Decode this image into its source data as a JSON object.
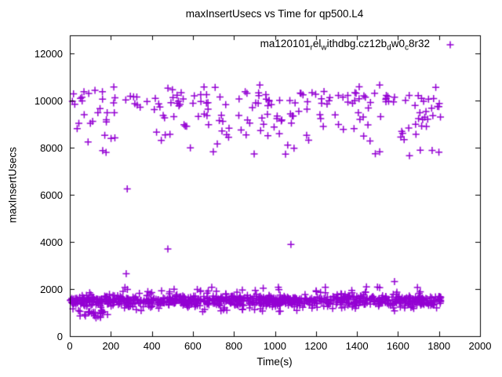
{
  "chart_data": {
    "type": "scatter",
    "title": "maxInsertUsecs vs Time for qp500.L4",
    "xlabel": "Time(s)",
    "ylabel": "maxInsertUsecs",
    "xlim": [
      0,
      2000
    ],
    "ylim": [
      0,
      12766
    ],
    "xticks": [
      0,
      200,
      400,
      600,
      800,
      1000,
      1200,
      1400,
      1600,
      1800,
      2000
    ],
    "yticks": [
      0,
      2000,
      4000,
      6000,
      8000,
      10000,
      12000
    ],
    "grid": false,
    "marker": "plus",
    "series_color": "#9400D3",
    "axis_color": "#000000",
    "legend": {
      "position": "top-right-inside",
      "label_plain": "ma120101_rel_withdbg.cz12b_dw0_c8r32",
      "label_segments": [
        {
          "text": "ma120101",
          "sub": false
        },
        {
          "text": "r",
          "sub": true
        },
        {
          "text": "el",
          "sub": false
        },
        {
          "text": "w",
          "sub": true
        },
        {
          "text": "ithdbg.cz12b",
          "sub": false
        },
        {
          "text": "d",
          "sub": true
        },
        {
          "text": "w0",
          "sub": false
        },
        {
          "text": "c",
          "sub": true
        },
        {
          "text": "8r32",
          "sub": false
        }
      ]
    },
    "series": [
      {
        "name": "ma120101_rel_withdbg.cz12b_dw0_c8r32",
        "x_range_observed": [
          0,
          1812
        ],
        "clusters": [
          {
            "name": "low-band-core",
            "count": 850,
            "x": [
              2,
              1812
            ],
            "y": {
              "dist": "gauss",
              "mean": 1510,
              "sd": 130,
              "clip": [
                1200,
                1870
              ]
            }
          },
          {
            "name": "low-band-spikes",
            "count": 26,
            "x": [
              10,
              1810
            ],
            "y": {
              "dist": "uniform",
              "range": [
                1870,
                2130
              ]
            }
          },
          {
            "name": "low-band-dips",
            "count": 24,
            "x": [
              10,
              1810
            ],
            "y": {
              "dist": "uniform",
              "range": [
                1020,
                1200
              ]
            }
          },
          {
            "name": "low-left-subcluster",
            "count": 22,
            "x": [
              45,
              185
            ],
            "y": {
              "dist": "uniform",
              "range": [
                760,
                1100
              ]
            }
          },
          {
            "name": "upper-main-band",
            "count": 125,
            "x": [
              0,
              1812
            ],
            "y": {
              "dist": "gauss",
              "mean": 10020,
              "sd": 300,
              "clip": [
                9480,
                10660
              ]
            }
          },
          {
            "name": "upper-mid-scatter",
            "count": 72,
            "x": [
              5,
              1812
            ],
            "y": {
              "dist": "uniform",
              "range": [
                8500,
                9480
              ]
            }
          },
          {
            "name": "upper-sparse",
            "count": 24,
            "x": [
              25,
              1800
            ],
            "y": {
              "dist": "uniform",
              "range": [
                7650,
                8500
              ]
            }
          }
        ],
        "outliers": [
          [
            275,
            2650
          ],
          [
            280,
            6250
          ],
          [
            478,
            3700
          ],
          [
            1078,
            3890
          ],
          [
            1500,
            2080
          ],
          [
            1583,
            2320
          ],
          [
            1656,
            7660
          ]
        ]
      }
    ]
  }
}
